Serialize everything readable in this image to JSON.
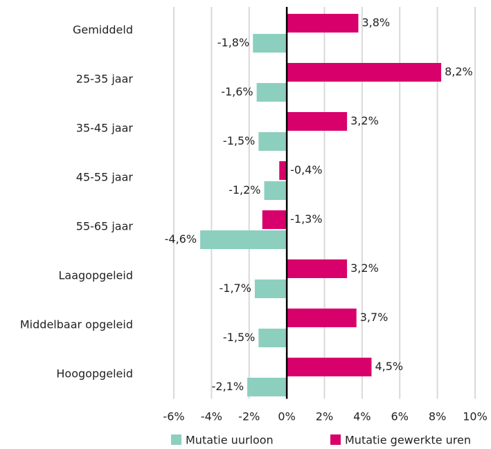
{
  "chart_data": {
    "type": "barh",
    "categories": [
      "Gemiddeld",
      "25-35 jaar",
      "35-45 jaar",
      "45-55 jaar",
      "55-65 jaar",
      "Laagopgeleid",
      "Middelbaar opgeleid",
      "Hoogopgeleid"
    ],
    "series": [
      {
        "name": "Mutatie uurloon",
        "color": "#8ccfbf",
        "values": [
          -1.8,
          -1.6,
          -1.5,
          -1.2,
          -4.6,
          -1.7,
          -1.5,
          -2.1
        ],
        "value_labels": [
          "-1,8%",
          "-1,6%",
          "-1,5%",
          "-1,2%",
          "-4,6%",
          "-1,7%",
          "-1,5%",
          "-2,1%"
        ]
      },
      {
        "name": "Mutatie gewerkte uren",
        "color": "#d8006b",
        "values": [
          3.8,
          8.2,
          3.2,
          -0.4,
          -1.3,
          3.2,
          3.7,
          4.5
        ],
        "value_labels": [
          "3,8%",
          "8,2%",
          "3,2%",
          "-0,4%",
          "-1,3%",
          "3,2%",
          "3,7%",
          "4,5%"
        ]
      }
    ],
    "xlim": [
      -6,
      10
    ],
    "xticks": [
      {
        "value": -6,
        "label": "-6%"
      },
      {
        "value": -4,
        "label": "-4%"
      },
      {
        "value": -2,
        "label": "-2%"
      },
      {
        "value": 0,
        "label": "0%"
      },
      {
        "value": 2,
        "label": "2%"
      },
      {
        "value": 4,
        "label": "4%"
      },
      {
        "value": 6,
        "label": "6%"
      },
      {
        "value": 8,
        "label": "8%"
      },
      {
        "value": 10,
        "label": "10%"
      }
    ],
    "grid": true
  }
}
